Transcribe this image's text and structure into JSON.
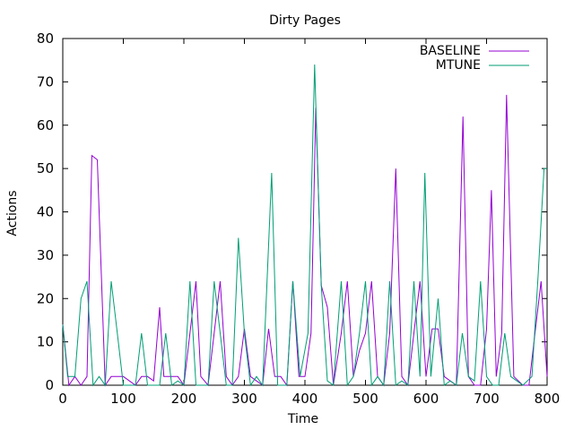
{
  "chart_data": {
    "type": "line",
    "title": "Dirty Pages",
    "xlabel": "Time",
    "ylabel": "Actions",
    "xlim": [
      0,
      800
    ],
    "ylim": [
      0,
      80
    ],
    "xticks": [
      0,
      100,
      200,
      300,
      400,
      500,
      600,
      700,
      800
    ],
    "yticks": [
      0,
      10,
      20,
      30,
      40,
      50,
      60,
      70,
      80
    ],
    "grid": false,
    "legend_position": "top-right",
    "series": [
      {
        "name": "BASELINE",
        "color": "#9400d3",
        "points": [
          [
            0,
            14
          ],
          [
            10,
            0
          ],
          [
            20,
            2
          ],
          [
            30,
            0
          ],
          [
            40,
            2
          ],
          [
            48,
            53
          ],
          [
            57,
            52
          ],
          [
            70,
            0
          ],
          [
            80,
            2
          ],
          [
            90,
            2
          ],
          [
            100,
            2
          ],
          [
            110,
            1
          ],
          [
            120,
            0
          ],
          [
            130,
            2
          ],
          [
            140,
            2
          ],
          [
            150,
            1
          ],
          [
            160,
            18
          ],
          [
            167,
            2
          ],
          [
            180,
            2
          ],
          [
            190,
            2
          ],
          [
            200,
            0
          ],
          [
            210,
            12
          ],
          [
            220,
            24
          ],
          [
            228,
            2
          ],
          [
            240,
            0
          ],
          [
            250,
            12
          ],
          [
            260,
            24
          ],
          [
            270,
            2
          ],
          [
            280,
            0
          ],
          [
            290,
            2
          ],
          [
            300,
            13
          ],
          [
            310,
            2
          ],
          [
            320,
            1
          ],
          [
            330,
            0
          ],
          [
            340,
            13
          ],
          [
            350,
            2
          ],
          [
            360,
            2
          ],
          [
            370,
            0
          ],
          [
            380,
            24
          ],
          [
            390,
            2
          ],
          [
            400,
            2
          ],
          [
            410,
            12
          ],
          [
            418,
            64
          ],
          [
            427,
            23
          ],
          [
            437,
            18
          ],
          [
            447,
            0
          ],
          [
            460,
            12
          ],
          [
            470,
            24
          ],
          [
            480,
            2
          ],
          [
            490,
            8
          ],
          [
            500,
            12
          ],
          [
            510,
            24
          ],
          [
            520,
            2
          ],
          [
            530,
            0
          ],
          [
            540,
            12
          ],
          [
            550,
            50
          ],
          [
            560,
            2
          ],
          [
            570,
            0
          ],
          [
            580,
            12
          ],
          [
            590,
            24
          ],
          [
            600,
            2
          ],
          [
            610,
            13
          ],
          [
            620,
            13
          ],
          [
            630,
            2
          ],
          [
            640,
            1
          ],
          [
            650,
            0
          ],
          [
            661,
            62
          ],
          [
            670,
            2
          ],
          [
            680,
            0
          ],
          [
            690,
            0
          ],
          [
            700,
            13
          ],
          [
            708,
            45
          ],
          [
            716,
            2
          ],
          [
            725,
            12
          ],
          [
            733,
            67
          ],
          [
            745,
            2
          ],
          [
            760,
            0
          ],
          [
            770,
            0
          ],
          [
            780,
            12
          ],
          [
            790,
            24
          ],
          [
            800,
            2
          ]
        ]
      },
      {
        "name": "MTUNE",
        "color": "#009e73",
        "points": [
          [
            0,
            14
          ],
          [
            8,
            2
          ],
          [
            20,
            2
          ],
          [
            30,
            20
          ],
          [
            40,
            24
          ],
          [
            50,
            0
          ],
          [
            60,
            2
          ],
          [
            70,
            0
          ],
          [
            80,
            24
          ],
          [
            90,
            12
          ],
          [
            100,
            0
          ],
          [
            120,
            0
          ],
          [
            130,
            12
          ],
          [
            140,
            0
          ],
          [
            160,
            0
          ],
          [
            170,
            12
          ],
          [
            180,
            0
          ],
          [
            190,
            1
          ],
          [
            200,
            0
          ],
          [
            210,
            24
          ],
          [
            220,
            0
          ],
          [
            230,
            0
          ],
          [
            240,
            0
          ],
          [
            250,
            24
          ],
          [
            260,
            12
          ],
          [
            270,
            0
          ],
          [
            280,
            0
          ],
          [
            290,
            34
          ],
          [
            300,
            12
          ],
          [
            310,
            0
          ],
          [
            320,
            2
          ],
          [
            330,
            0
          ],
          [
            345,
            49
          ],
          [
            355,
            0
          ],
          [
            370,
            0
          ],
          [
            380,
            24
          ],
          [
            392,
            2
          ],
          [
            405,
            12
          ],
          [
            416,
            74
          ],
          [
            427,
            23
          ],
          [
            437,
            1
          ],
          [
            447,
            0
          ],
          [
            460,
            24
          ],
          [
            470,
            0
          ],
          [
            480,
            2
          ],
          [
            490,
            12
          ],
          [
            500,
            24
          ],
          [
            510,
            0
          ],
          [
            520,
            2
          ],
          [
            530,
            0
          ],
          [
            540,
            24
          ],
          [
            550,
            0
          ],
          [
            560,
            1
          ],
          [
            570,
            0
          ],
          [
            580,
            24
          ],
          [
            590,
            2
          ],
          [
            598,
            49
          ],
          [
            608,
            2
          ],
          [
            620,
            20
          ],
          [
            630,
            0
          ],
          [
            640,
            1
          ],
          [
            650,
            0
          ],
          [
            660,
            12
          ],
          [
            670,
            2
          ],
          [
            680,
            1
          ],
          [
            690,
            24
          ],
          [
            700,
            2
          ],
          [
            710,
            0
          ],
          [
            720,
            0
          ],
          [
            730,
            12
          ],
          [
            740,
            2
          ],
          [
            750,
            1
          ],
          [
            760,
            0
          ],
          [
            775,
            2
          ],
          [
            785,
            25
          ],
          [
            795,
            50
          ],
          [
            800,
            50
          ]
        ]
      }
    ]
  }
}
